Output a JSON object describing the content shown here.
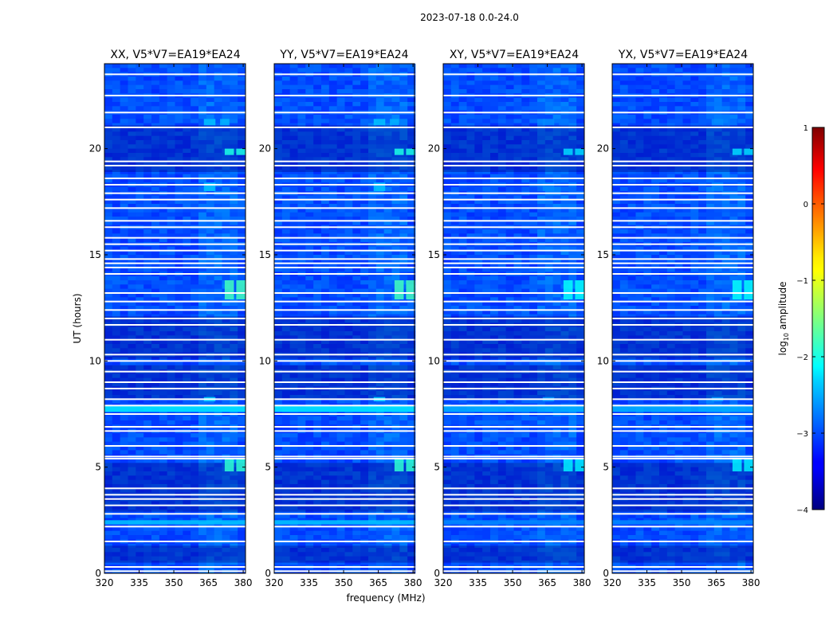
{
  "chart_data": {
    "type": "heatmap",
    "suptitle": "2023-07-18 0.0-24.0",
    "xlabel": "frequency (MHz)",
    "ylabel": "UT (hours)",
    "xlim": [
      320,
      381
    ],
    "ylim": [
      0,
      24
    ],
    "x_ticks": [
      320,
      335,
      350,
      365,
      380
    ],
    "y_ticks": [
      0,
      5,
      10,
      15,
      20
    ],
    "panels": [
      {
        "title": "XX, V5*V7=EA19*EA24",
        "polarization": "XX"
      },
      {
        "title": "YY, V5*V7=EA19*EA24",
        "polarization": "YY"
      },
      {
        "title": "XY, V5*V7=EA19*EA24",
        "polarization": "XY"
      },
      {
        "title": "YX, V5*V7=EA19*EA24",
        "polarization": "YX"
      }
    ],
    "colorbar": {
      "label": "log10 amplitude",
      "label_main": "log",
      "label_sub": "10",
      "label_tail": " amplitude",
      "range": [
        -4,
        1
      ],
      "ticks": [
        1,
        0,
        -1,
        -2,
        -3,
        -4
      ],
      "tick_labels": [
        "1",
        "0",
        "−1",
        "−2",
        "−3",
        "−4"
      ],
      "colormap": "jet"
    },
    "flagged_ut_hours": [
      0.1,
      0.3,
      1.5,
      2.2,
      2.8,
      3.2,
      3.5,
      3.7,
      4.0,
      5.4,
      5.5,
      6.0,
      6.7,
      6.9,
      7.5,
      7.9,
      8.2,
      8.7,
      9.0,
      9.5,
      10.0,
      10.3,
      11.0,
      11.7,
      12.0,
      12.4,
      12.8,
      13.2,
      14.1,
      14.4,
      14.6,
      14.8,
      15.2,
      15.5,
      15.8,
      16.3,
      16.6,
      17.2,
      17.6,
      17.9,
      18.3,
      18.6,
      19.2,
      19.4,
      21.0,
      21.7,
      22.5,
      23.5
    ],
    "dark_ut_bands": [
      [
        0.5,
        1.3
      ],
      [
        2.9,
        5.2
      ],
      [
        8.2,
        9.8
      ],
      [
        10.1,
        12.1
      ],
      [
        18.9,
        21.1
      ]
    ],
    "rfi_features": [
      {
        "f0": 363,
        "f1": 368,
        "t0": 21.1,
        "t1": 21.4,
        "level": -2.4
      },
      {
        "f0": 370,
        "f1": 374,
        "t0": 21.1,
        "t1": 21.4,
        "level": -2.5
      },
      {
        "f0": 372,
        "f1": 376,
        "t0": 19.7,
        "t1": 20.0,
        "level": -2.0
      },
      {
        "f0": 377,
        "f1": 381,
        "t0": 19.7,
        "t1": 20.0,
        "level": -2.0
      },
      {
        "f0": 363,
        "f1": 368,
        "t0": 18.0,
        "t1": 18.4,
        "level": -2.4
      },
      {
        "f0": 372,
        "f1": 376,
        "t0": 12.9,
        "t1": 13.8,
        "level": -1.8
      },
      {
        "f0": 377,
        "f1": 381,
        "t0": 12.9,
        "t1": 13.8,
        "level": -1.8
      },
      {
        "f0": 372,
        "f1": 376,
        "t0": 4.8,
        "t1": 5.4,
        "level": -1.9
      },
      {
        "f0": 377,
        "f1": 381,
        "t0": 4.8,
        "t1": 5.4,
        "level": -1.9
      },
      {
        "f0": 363,
        "f1": 368,
        "t0": 8.1,
        "t1": 8.3,
        "level": -2.3
      },
      {
        "f0": 320,
        "f1": 381,
        "t0": 7.6,
        "t1": 7.9,
        "level": -2.2
      },
      {
        "f0": 320,
        "f1": 381,
        "t0": 2.3,
        "t1": 2.5,
        "level": -2.4
      }
    ]
  }
}
